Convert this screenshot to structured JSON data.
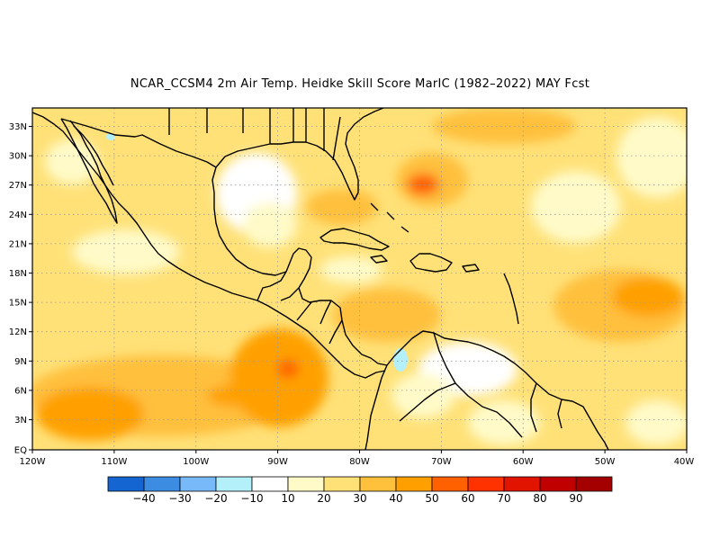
{
  "title": "NCAR_CCSM4  2m Air Temp. Heidke Skill Score MarIC (1982–2022) MAY Fcst",
  "lat_labels": [
    "33N",
    "30N",
    "27N",
    "24N",
    "21N",
    "18N",
    "15N",
    "12N",
    "9N",
    "6N",
    "3N",
    "EQ"
  ],
  "lon_labels": [
    "120W",
    "110W",
    "100W",
    "90W",
    "80W",
    "70W",
    "60W",
    "50W",
    "40W"
  ],
  "colorbar": {
    "labels": [
      "−40",
      "−30",
      "−20",
      "−10",
      "10",
      "20",
      "30",
      "40",
      "50",
      "60",
      "70",
      "80",
      "90"
    ],
    "colors": [
      "#1464d2",
      "#3c8ce1",
      "#78b9fa",
      "#b4f0fa",
      "#ffffff",
      "#fffac8",
      "#ffe178",
      "#ffc03c",
      "#ffa000",
      "#ff6000",
      "#ff3200",
      "#e11400",
      "#c00000",
      "#a50000"
    ]
  },
  "colors": {
    "coast": "#000000",
    "grid": "#9a9a9a"
  }
}
